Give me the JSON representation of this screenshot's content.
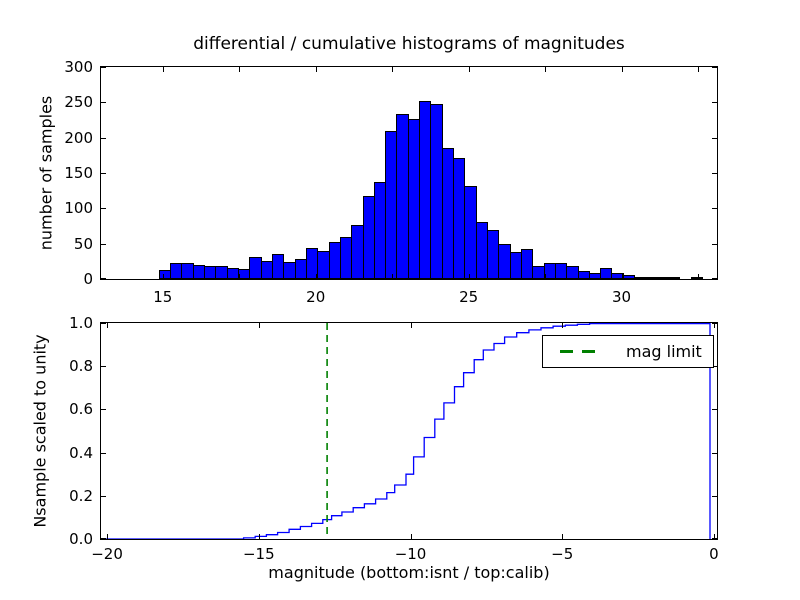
{
  "figure": {
    "background": "#ffffff",
    "title": "differential / cumulative histograms of magnitudes"
  },
  "chart_data": [
    {
      "type": "bar",
      "name": "differential-histogram",
      "title": "differential / cumulative histograms of magnitudes",
      "xlabel": "",
      "ylabel": "number of samples",
      "xlim": [
        12.98,
        33.12
      ],
      "ylim": [
        0,
        300
      ],
      "bar_color": "#0000ff",
      "bar_edge_color": "#000000",
      "grid": false,
      "bins_start": 14.87,
      "bin_width": 0.37,
      "counts": [
        13,
        22,
        22,
        20,
        18,
        18,
        15,
        14,
        31,
        26,
        35,
        24,
        28,
        44,
        39,
        52,
        60,
        77,
        118,
        137,
        209,
        234,
        226,
        252,
        248,
        186,
        171,
        132,
        81,
        69,
        50,
        38,
        43,
        19,
        22,
        22,
        18,
        11,
        8,
        16,
        8,
        6,
        2,
        1,
        1,
        2,
        0,
        1
      ],
      "xticks": {
        "values": [
          15,
          20,
          25,
          30
        ],
        "labels": [
          "15",
          "20",
          "25",
          "30"
        ]
      },
      "xticks_minor": [
        15,
        17.5,
        20,
        22.5,
        25,
        27.5,
        30,
        32.5
      ],
      "yticks": {
        "values": [
          0,
          50,
          100,
          150,
          200,
          250,
          300
        ],
        "labels": [
          "0",
          "50",
          "100",
          "150",
          "200",
          "250",
          "300"
        ]
      }
    },
    {
      "type": "line",
      "name": "cumulative-histogram",
      "xlabel": "magnitude (bottom:isnt / top:calib)",
      "ylabel": "Nsample scaled to unity",
      "xlim": [
        -20.2,
        0.1
      ],
      "ylim": [
        0,
        1
      ],
      "line_color": "#0000ff",
      "grid": false,
      "steps": [
        [
          -20.2,
          0
        ],
        [
          -15.86,
          0
        ],
        [
          -15.5,
          0.005
        ],
        [
          -15.12,
          0.012
        ],
        [
          -14.75,
          0.02
        ],
        [
          -14.38,
          0.03
        ],
        [
          -14.0,
          0.045
        ],
        [
          -13.63,
          0.058
        ],
        [
          -13.26,
          0.072
        ],
        [
          -12.89,
          0.09
        ],
        [
          -12.6,
          0.108
        ],
        [
          -12.26,
          0.125
        ],
        [
          -11.89,
          0.145
        ],
        [
          -11.52,
          0.163
        ],
        [
          -11.15,
          0.185
        ],
        [
          -10.78,
          0.215
        ],
        [
          -10.52,
          0.25
        ],
        [
          -10.15,
          0.3
        ],
        [
          -9.9,
          0.38
        ],
        [
          -9.55,
          0.47
        ],
        [
          -9.2,
          0.555
        ],
        [
          -8.9,
          0.63
        ],
        [
          -8.55,
          0.705
        ],
        [
          -8.25,
          0.77
        ],
        [
          -7.9,
          0.83
        ],
        [
          -7.6,
          0.875
        ],
        [
          -7.25,
          0.905
        ],
        [
          -6.9,
          0.935
        ],
        [
          -6.5,
          0.955
        ],
        [
          -6.1,
          0.968
        ],
        [
          -5.7,
          0.978
        ],
        [
          -5.3,
          0.985
        ],
        [
          -4.9,
          0.99
        ],
        [
          -4.5,
          0.994
        ],
        [
          -4.1,
          0.997
        ],
        [
          -3.7,
          0.998
        ],
        [
          -3.3,
          0.999
        ],
        [
          -2.9,
          1.0
        ],
        [
          -0.13,
          1.0
        ],
        [
          -0.13,
          0
        ]
      ],
      "mag_limit_line": {
        "x": -12.75,
        "color": "#008000",
        "style": "dashed",
        "label": "mag limit"
      },
      "xticks": {
        "values": [
          -20,
          -15,
          -10,
          -5,
          0
        ],
        "labels": [
          "−20",
          "−15",
          "−10",
          "−5",
          "0"
        ]
      },
      "yticks": {
        "values": [
          0,
          0.2,
          0.4,
          0.6,
          0.8,
          1.0
        ],
        "labels": [
          "0.0",
          "0.2",
          "0.4",
          "0.6",
          "0.8",
          "1.0"
        ]
      },
      "legend": {
        "position": "upper right",
        "entries": [
          {
            "label": "mag limit",
            "color": "#008000",
            "style": "dashed"
          }
        ]
      }
    }
  ]
}
